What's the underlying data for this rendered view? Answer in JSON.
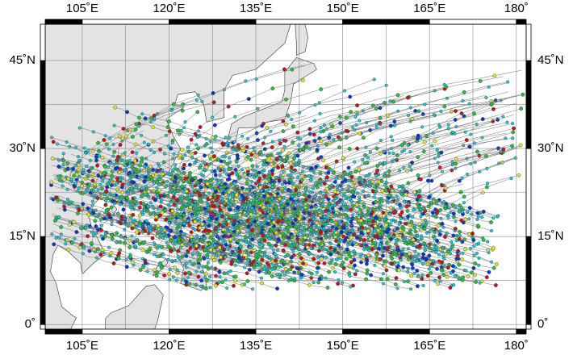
{
  "map": {
    "xlim": [
      98.6,
      181.7
    ],
    "ylim": [
      -0.8,
      51.2
    ],
    "xticks": [
      {
        "value": 105,
        "label": "105˚E"
      },
      {
        "value": 120,
        "label": "120˚E"
      },
      {
        "value": 135,
        "label": "135˚E"
      },
      {
        "value": 150,
        "label": "150˚E"
      },
      {
        "value": 165,
        "label": "165˚E"
      },
      {
        "value": 180,
        "label": "180˚"
      }
    ],
    "yticks": [
      {
        "value": 0,
        "label": "0˚"
      },
      {
        "value": 15,
        "label": "15˚N"
      },
      {
        "value": 30,
        "label": "30˚N"
      },
      {
        "value": 45,
        "label": "45˚N"
      }
    ]
  }
}
